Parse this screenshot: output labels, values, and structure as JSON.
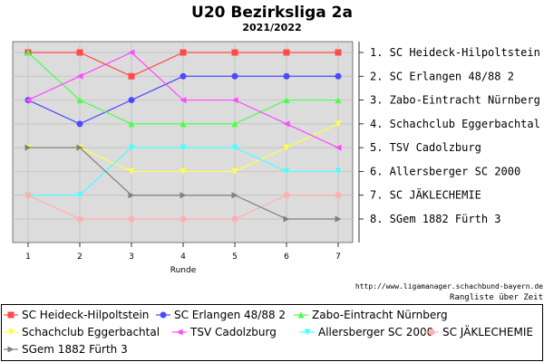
{
  "chart_data": {
    "type": "line",
    "title": "U20 Bezirksliga 2a",
    "subtitle": "2021/2022",
    "xlabel": "Runde",
    "ylabel": "",
    "x": [
      1,
      2,
      3,
      4,
      5,
      6,
      7
    ],
    "ylim": [
      1,
      8
    ],
    "y_inverted": true,
    "grid": true,
    "legend_position": "bottom",
    "rank_labels": [
      "1. SC Heideck-Hilpoltstein",
      "2. SC Erlangen 48/88 2",
      "3. Zabo-Eintracht Nürnberg",
      "4. Schachclub Eggerbachtal",
      "5. TSV Cadolzburg",
      "6. Allersberger SC 2000",
      "7. SC JÄKLECHEMIE",
      "8. SGem 1882 Fürth 3"
    ],
    "series": [
      {
        "name": "SC Heideck-Hilpoltstein",
        "color": "#ff4a4a",
        "marker": "square",
        "values": [
          1,
          1,
          2,
          1,
          1,
          1,
          1
        ]
      },
      {
        "name": "SC Erlangen 48/88 2",
        "color": "#4a4aff",
        "marker": "circle",
        "values": [
          3,
          4,
          3,
          2,
          2,
          2,
          2
        ]
      },
      {
        "name": "Zabo-Eintracht Nürnberg",
        "color": "#4aff4a",
        "marker": "triangle-up",
        "values": [
          1,
          3,
          4,
          4,
          4,
          3,
          3
        ]
      },
      {
        "name": "Schachclub Eggerbachtal",
        "color": "#ffff4a",
        "marker": "triangle-down",
        "values": [
          5,
          5,
          6,
          6,
          6,
          5,
          4
        ]
      },
      {
        "name": "TSV Cadolzburg",
        "color": "#ff4aff",
        "marker": "triangle-left",
        "values": [
          3,
          2,
          1,
          3,
          3,
          4,
          5
        ]
      },
      {
        "name": "Allersberger SC 2000",
        "color": "#4affff",
        "marker": "triangle-down",
        "values": [
          7,
          7,
          5,
          5,
          5,
          6,
          6
        ]
      },
      {
        "name": "SC JÄKLECHEMIE",
        "color": "#ffb0b0",
        "marker": "circle",
        "values": [
          7,
          8,
          8,
          8,
          8,
          7,
          7
        ]
      },
      {
        "name": "SGem 1882 Fürth 3",
        "color": "#808080",
        "marker": "triangle-right",
        "values": [
          5,
          5,
          7,
          7,
          7,
          8,
          8
        ]
      }
    ]
  },
  "credits": {
    "url": "http://www.ligamanager.schachbund-bayern.de",
    "note": "Rangliste über Zeit"
  }
}
